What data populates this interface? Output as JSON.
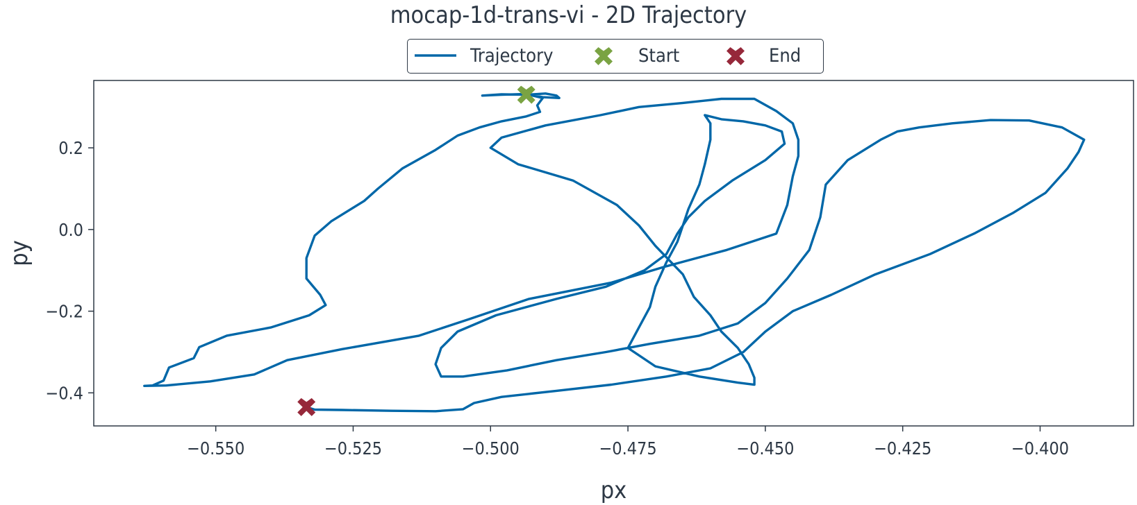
{
  "chart_data": {
    "type": "line",
    "title": "mocap-1d-trans-vi - 2D Trajectory",
    "xlabel": "px",
    "ylabel": "py",
    "xlim": [
      -0.5722,
      -0.383
    ],
    "ylim": [
      -0.481,
      0.365
    ],
    "xticks": [
      -0.55,
      -0.525,
      -0.5,
      -0.475,
      -0.45,
      -0.425,
      -0.4
    ],
    "xtick_labels": [
      "−0.550",
      "−0.525",
      "−0.500",
      "−0.475",
      "−0.450",
      "−0.425",
      "−0.400"
    ],
    "yticks": [
      0.2,
      0.0,
      -0.2,
      -0.4
    ],
    "ytick_labels": [
      "0.2",
      "0.0",
      "−0.2",
      "−0.4"
    ],
    "grid": false,
    "legend_position": "top-center",
    "legend": [
      "Trajectory",
      "Start",
      "End"
    ],
    "colors": {
      "trajectory": "#0067a8",
      "start": "#7aa343",
      "end": "#96283a",
      "axis": "#2d3845"
    },
    "series": [
      {
        "name": "Trajectory",
        "points": [
          [
            -0.4935,
            0.33
          ],
          [
            -0.49,
            0.333
          ],
          [
            -0.488,
            0.328
          ],
          [
            -0.4875,
            0.322
          ],
          [
            -0.4905,
            0.324
          ],
          [
            -0.4935,
            0.332
          ],
          [
            -0.498,
            0.33
          ],
          [
            -0.5015,
            0.328
          ],
          [
            -0.498,
            0.331
          ],
          [
            -0.493,
            0.33
          ],
          [
            -0.4905,
            0.322
          ],
          [
            -0.4915,
            0.304
          ],
          [
            -0.491,
            0.288
          ],
          [
            -0.4935,
            0.277
          ],
          [
            -0.498,
            0.265
          ],
          [
            -0.502,
            0.25
          ],
          [
            -0.506,
            0.23
          ],
          [
            -0.51,
            0.195
          ],
          [
            -0.516,
            0.15
          ],
          [
            -0.5205,
            0.1
          ],
          [
            -0.523,
            0.07
          ],
          [
            -0.529,
            0.02
          ],
          [
            -0.532,
            -0.015
          ],
          [
            -0.5335,
            -0.07
          ],
          [
            -0.5335,
            -0.12
          ],
          [
            -0.531,
            -0.16
          ],
          [
            -0.53,
            -0.185
          ],
          [
            -0.533,
            -0.21
          ],
          [
            -0.54,
            -0.24
          ],
          [
            -0.548,
            -0.26
          ],
          [
            -0.553,
            -0.288
          ],
          [
            -0.554,
            -0.315
          ],
          [
            -0.5585,
            -0.338
          ],
          [
            -0.5595,
            -0.37
          ],
          [
            -0.5615,
            -0.382
          ],
          [
            -0.563,
            -0.383
          ],
          [
            -0.559,
            -0.382
          ],
          [
            -0.551,
            -0.372
          ],
          [
            -0.543,
            -0.355
          ],
          [
            -0.537,
            -0.32
          ],
          [
            -0.527,
            -0.293
          ],
          [
            -0.513,
            -0.26
          ],
          [
            -0.504,
            -0.22
          ],
          [
            -0.493,
            -0.17
          ],
          [
            -0.478,
            -0.13
          ],
          [
            -0.468,
            -0.09
          ],
          [
            -0.457,
            -0.05
          ],
          [
            -0.448,
            -0.01
          ],
          [
            -0.446,
            0.06
          ],
          [
            -0.445,
            0.13
          ],
          [
            -0.444,
            0.18
          ],
          [
            -0.444,
            0.22
          ],
          [
            -0.445,
            0.26
          ],
          [
            -0.448,
            0.29
          ],
          [
            -0.452,
            0.32
          ],
          [
            -0.458,
            0.32
          ],
          [
            -0.465,
            0.31
          ],
          [
            -0.473,
            0.3
          ],
          [
            -0.48,
            0.28
          ],
          [
            -0.49,
            0.255
          ],
          [
            -0.498,
            0.225
          ],
          [
            -0.5,
            0.2
          ],
          [
            -0.495,
            0.16
          ],
          [
            -0.485,
            0.12
          ],
          [
            -0.477,
            0.06
          ],
          [
            -0.473,
            0.01
          ],
          [
            -0.47,
            -0.04
          ],
          [
            -0.465,
            -0.11
          ],
          [
            -0.463,
            -0.165
          ],
          [
            -0.46,
            -0.21
          ],
          [
            -0.458,
            -0.25
          ],
          [
            -0.455,
            -0.29
          ],
          [
            -0.453,
            -0.33
          ],
          [
            -0.452,
            -0.363
          ],
          [
            -0.452,
            -0.38
          ],
          [
            -0.455,
            -0.375
          ],
          [
            -0.462,
            -0.36
          ],
          [
            -0.47,
            -0.335
          ],
          [
            -0.475,
            -0.29
          ],
          [
            -0.473,
            -0.24
          ],
          [
            -0.471,
            -0.19
          ],
          [
            -0.47,
            -0.14
          ],
          [
            -0.468,
            -0.08
          ],
          [
            -0.466,
            -0.03
          ],
          [
            -0.464,
            0.05
          ],
          [
            -0.462,
            0.11
          ],
          [
            -0.461,
            0.16
          ],
          [
            -0.46,
            0.22
          ],
          [
            -0.46,
            0.26
          ],
          [
            -0.461,
            0.28
          ],
          [
            -0.458,
            0.27
          ],
          [
            -0.454,
            0.265
          ],
          [
            -0.45,
            0.255
          ],
          [
            -0.447,
            0.24
          ],
          [
            -0.4465,
            0.21
          ],
          [
            -0.45,
            0.17
          ],
          [
            -0.456,
            0.12
          ],
          [
            -0.461,
            0.07
          ],
          [
            -0.464,
            0.03
          ],
          [
            -0.466,
            -0.01
          ],
          [
            -0.468,
            -0.06
          ],
          [
            -0.472,
            -0.1
          ],
          [
            -0.479,
            -0.14
          ],
          [
            -0.488,
            -0.17
          ],
          [
            -0.499,
            -0.21
          ],
          [
            -0.506,
            -0.25
          ],
          [
            -0.509,
            -0.29
          ],
          [
            -0.51,
            -0.33
          ],
          [
            -0.509,
            -0.36
          ],
          [
            -0.505,
            -0.36
          ],
          [
            -0.497,
            -0.345
          ],
          [
            -0.488,
            -0.32
          ],
          [
            -0.479,
            -0.3
          ],
          [
            -0.471,
            -0.28
          ],
          [
            -0.462,
            -0.26
          ],
          [
            -0.455,
            -0.23
          ],
          [
            -0.45,
            -0.18
          ],
          [
            -0.446,
            -0.12
          ],
          [
            -0.442,
            -0.05
          ],
          [
            -0.44,
            0.03
          ],
          [
            -0.439,
            0.11
          ],
          [
            -0.435,
            0.17
          ],
          [
            -0.429,
            0.22
          ],
          [
            -0.426,
            0.24
          ],
          [
            -0.422,
            0.25
          ],
          [
            -0.416,
            0.26
          ],
          [
            -0.409,
            0.268
          ],
          [
            -0.402,
            0.267
          ],
          [
            -0.396,
            0.25
          ],
          [
            -0.392,
            0.22
          ],
          [
            -0.393,
            0.19
          ],
          [
            -0.395,
            0.15
          ],
          [
            -0.399,
            0.09
          ],
          [
            -0.405,
            0.04
          ],
          [
            -0.412,
            -0.01
          ],
          [
            -0.42,
            -0.06
          ],
          [
            -0.43,
            -0.11
          ],
          [
            -0.438,
            -0.16
          ],
          [
            -0.445,
            -0.2
          ],
          [
            -0.45,
            -0.25
          ],
          [
            -0.454,
            -0.3
          ],
          [
            -0.46,
            -0.34
          ],
          [
            -0.468,
            -0.36
          ],
          [
            -0.478,
            -0.38
          ],
          [
            -0.488,
            -0.395
          ],
          [
            -0.498,
            -0.41
          ],
          [
            -0.503,
            -0.425
          ],
          [
            -0.505,
            -0.44
          ],
          [
            -0.51,
            -0.445
          ],
          [
            -0.518,
            -0.444
          ],
          [
            -0.527,
            -0.442
          ],
          [
            -0.532,
            -0.441
          ],
          [
            -0.5335,
            -0.435
          ]
        ]
      }
    ],
    "start": {
      "x": -0.4935,
      "y": 0.33
    },
    "end": {
      "x": -0.5335,
      "y": -0.435
    }
  }
}
